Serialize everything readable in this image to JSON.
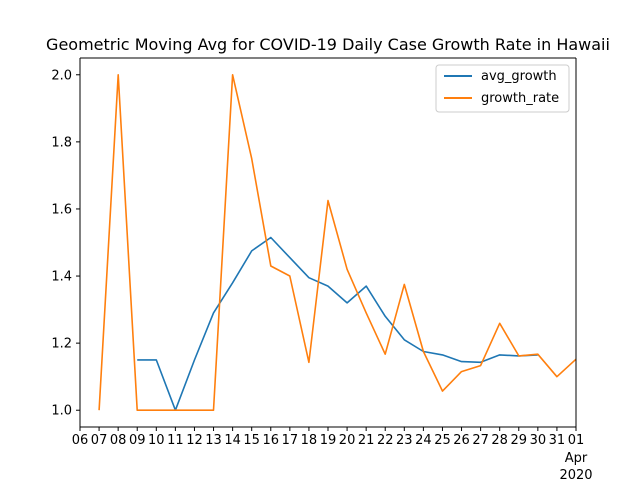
{
  "chart_data": {
    "type": "line",
    "title": "Geometric Moving Avg for COVID-19 Daily Case Growth Rate in Hawaii",
    "xlabel": "",
    "ylabel": "",
    "x": [
      "2020-03-07",
      "2020-03-08",
      "2020-03-09",
      "2020-03-10",
      "2020-03-11",
      "2020-03-12",
      "2020-03-13",
      "2020-03-14",
      "2020-03-15",
      "2020-03-16",
      "2020-03-17",
      "2020-03-18",
      "2020-03-19",
      "2020-03-20",
      "2020-03-21",
      "2020-03-22",
      "2020-03-23",
      "2020-03-24",
      "2020-03-25",
      "2020-03-26",
      "2020-03-27",
      "2020-03-28",
      "2020-03-29",
      "2020-03-30",
      "2020-03-31",
      "2020-04-01"
    ],
    "xlim": [
      "2020-03-06",
      "2020-04-01"
    ],
    "ylim": [
      0.95,
      2.05
    ],
    "x_tick_labels": [
      "06",
      "07",
      "08",
      "09",
      "10",
      "11",
      "12",
      "13",
      "14",
      "15",
      "16",
      "17",
      "18",
      "19",
      "20",
      "21",
      "22",
      "23",
      "24",
      "25",
      "26",
      "27",
      "28",
      "29",
      "30",
      "31",
      "01"
    ],
    "x_tick_extra": {
      "label": "01",
      "month": "Apr",
      "year": "2020"
    },
    "y_ticks": [
      1.0,
      1.2,
      1.4,
      1.6,
      1.8,
      2.0
    ],
    "y_tick_labels": [
      "1.0",
      "1.2",
      "1.4",
      "1.6",
      "1.8",
      "2.0"
    ],
    "grid": false,
    "legend_position": "top-right",
    "series": [
      {
        "name": "avg_growth",
        "color": "#1f77b4",
        "values": [
          null,
          null,
          1.15,
          1.15,
          1.0,
          1.15,
          1.29,
          1.38,
          1.475,
          1.515,
          1.455,
          1.395,
          1.37,
          1.32,
          1.37,
          1.28,
          1.21,
          1.175,
          1.165,
          1.145,
          1.143,
          1.165,
          1.162,
          1.165,
          null,
          null
        ]
      },
      {
        "name": "growth_rate",
        "color": "#ff7f0e",
        "values": [
          1.0,
          2.0,
          1.0,
          1.0,
          1.0,
          1.0,
          1.0,
          2.0,
          1.75,
          1.43,
          1.4,
          1.143,
          1.625,
          1.42,
          1.29,
          1.167,
          1.375,
          1.175,
          1.057,
          1.115,
          1.133,
          1.259,
          1.162,
          1.167,
          1.1,
          1.152
        ]
      }
    ]
  }
}
